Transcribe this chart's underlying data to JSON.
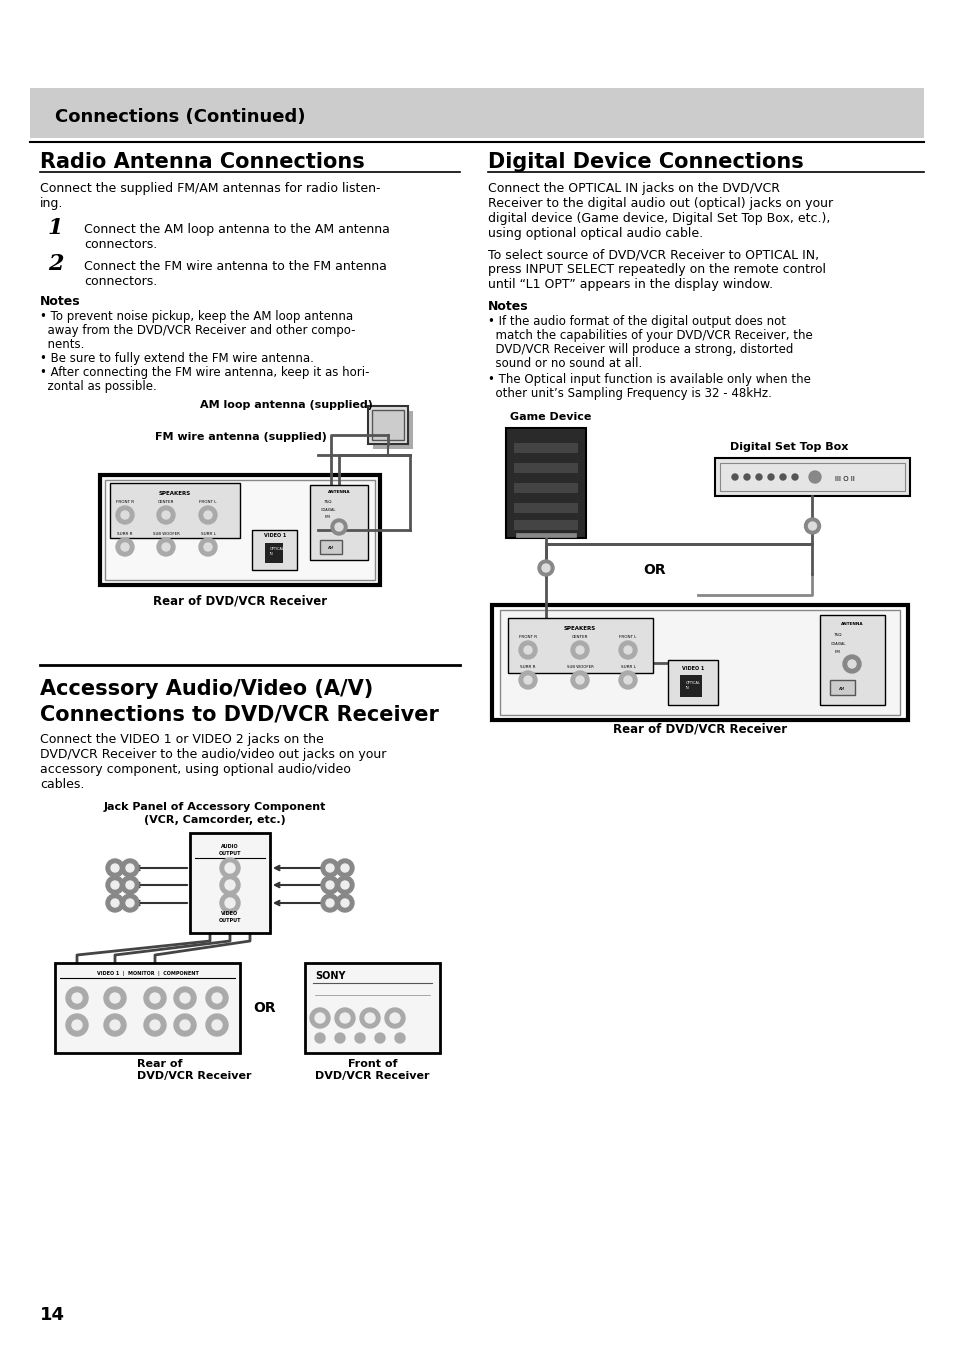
{
  "bg_color": "#ffffff",
  "header_bar_color": "#cccccc",
  "header_text": "Connections (Continued)",
  "divider_color": "#000000",
  "page_num": "14",
  "section1_title": "Radio Antenna Connections",
  "section1_body_line1": "Connect the supplied FM/AM antennas for radio listen-",
  "section1_body_line2": "ing.",
  "step1_num": "1",
  "step1_line1": "Connect the AM loop antenna to the AM antenna",
  "step1_line2": "connectors.",
  "step2_num": "2",
  "step2_line1": "Connect the FM wire antenna to the FM antenna",
  "step2_line2": "connectors.",
  "notes_title": "Notes",
  "note1_line1": "• To prevent noise pickup, keep the AM loop antenna",
  "note1_line2": "  away from the DVD/VCR Receiver and other compo-",
  "note1_line3": "  nents.",
  "note2_line": "• Be sure to fully extend the FM wire antenna.",
  "note3_line1": "• After connecting the FM wire antenna, keep it as hori-",
  "note3_line2": "  zontal as possible.",
  "am_label": "AM loop antenna (supplied)",
  "fm_label": "FM wire antenna (supplied)",
  "rear_label1": "Rear of DVD/VCR Receiver",
  "section2_title": "Digital Device Connections",
  "s2_body_l1": "Connect the OPTICAL IN jacks on the DVD/VCR",
  "s2_body_l2": "Receiver to the digital audio out (optical) jacks on your",
  "s2_body_l3": "digital device (Game device, Digital Set Top Box, etc.),",
  "s2_body_l4": "using optional optical audio cable.",
  "s2_body_l5": "To select source of DVD/VCR Receiver to OPTICAL IN,",
  "s2_body_l6": "press INPUT SELECT repeatedly on the remote control",
  "s2_body_l7": "until “L1 OPT” appears in the display window.",
  "notes2_title": "Notes",
  "n2_1_l1": "• If the audio format of the digital output does not",
  "n2_1_l2": "  match the capabilities of your DVD/VCR Receiver, the",
  "n2_1_l3": "  DVD/VCR Receiver will produce a strong, distorted",
  "n2_1_l4": "  sound or no sound at all.",
  "n2_2_l1": "• The Optical input function is available only when the",
  "n2_2_l2": "  other unit’s Sampling Frequency is 32 - 48kHz.",
  "game_device_label": "Game Device",
  "digital_stb_label": "Digital Set Top Box",
  "or_label_right": "OR",
  "rear_label2": "Rear of DVD/VCR Receiver",
  "section3_title1": "Accessory Audio/Video (A/V)",
  "section3_title2": "Connections to DVD/VCR Receiver",
  "s3_body_l1": "Connect the VIDEO 1 or VIDEO 2 jacks on the",
  "s3_body_l2": "DVD/VCR Receiver to the audio/video out jacks on your",
  "s3_body_l3": "accessory component, using optional audio/video",
  "s3_body_l4": "cables.",
  "jack_panel_label1": "Jack Panel of Accessory Component",
  "jack_panel_label2": "(VCR, Camcorder, etc.)",
  "or_label_bottom": "OR",
  "rear_label3a": "Rear of",
  "rear_label3b": "DVD/VCR Receiver",
  "front_label_a": "Front of",
  "front_label_b": "DVD/VCR Receiver",
  "body_fs": 9,
  "title_fs": 15,
  "header_fs": 13,
  "label_fs": 8,
  "step_num_fs": 16,
  "notes_fs": 8.5,
  "small_fs": 7
}
